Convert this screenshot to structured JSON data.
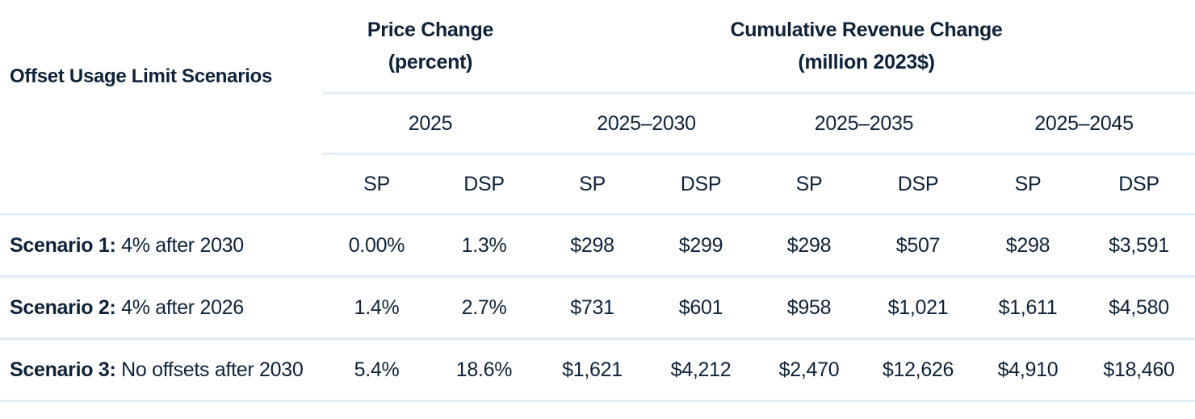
{
  "table": {
    "row_header": "Offset Usage Limit Scenarios",
    "price_group": {
      "line1": "Price Change",
      "line2": "(percent)",
      "year": "2025"
    },
    "revenue_group": {
      "line1": "Cumulative Revenue Change",
      "line2": "(million 2023$)",
      "periods": [
        "2025–2030",
        "2025–2035",
        "2025–2045"
      ]
    },
    "sub_headers": [
      "SP",
      "DSP",
      "SP",
      "DSP",
      "SP",
      "DSP",
      "SP",
      "DSP"
    ],
    "rows": [
      {
        "label_bold": "Scenario 1:",
        "label_rest": " 4% after 2030",
        "cells": [
          "0.00%",
          "1.3%",
          "$298",
          "$299",
          "$298",
          "$507",
          "$298",
          "$3,591"
        ]
      },
      {
        "label_bold": "Scenario 2:",
        "label_rest": " 4% after 2026",
        "cells": [
          "1.4%",
          "2.7%",
          "$731",
          "$601",
          "$958",
          "$1,021",
          "$1,611",
          "$4,580"
        ]
      },
      {
        "label_bold": "Scenario 3:",
        "label_rest": " No offsets after 2030",
        "cells": [
          "5.4%",
          "18.6%",
          "$1,621",
          "$4,212",
          "$2,470",
          "$12,626",
          "$4,910",
          "$18,460"
        ]
      }
    ]
  },
  "colors": {
    "text": "#0f2238",
    "rule": "#e3edf6",
    "background": "#ffffff"
  }
}
